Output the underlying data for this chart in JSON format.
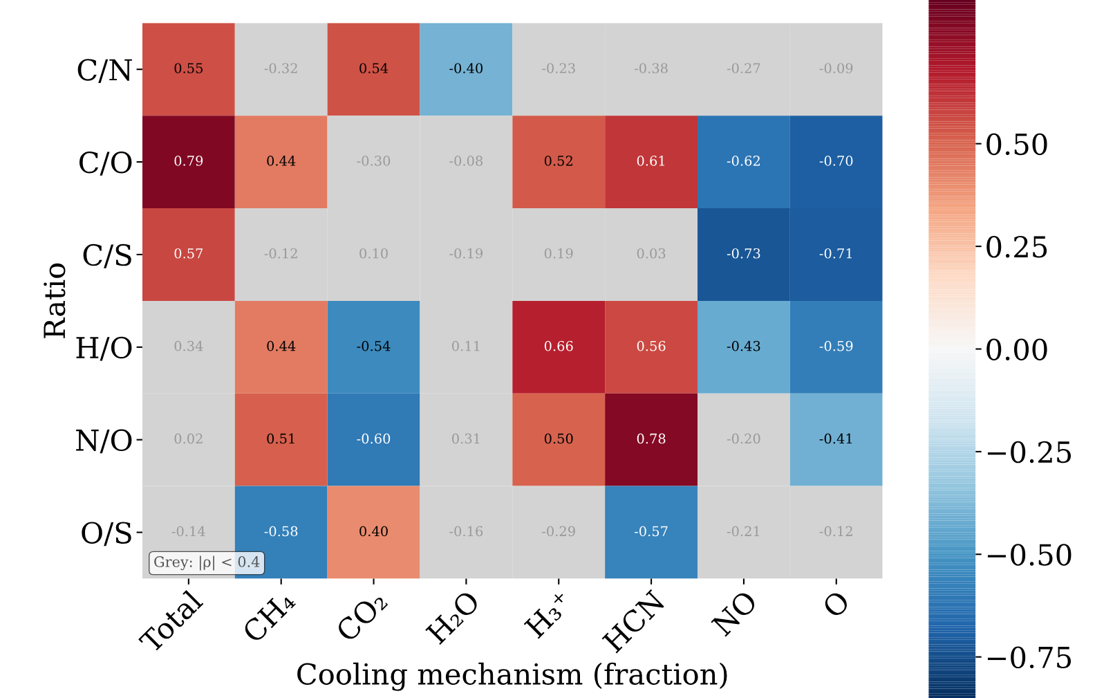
{
  "chart_data": {
    "type": "heatmap",
    "xlabel": "Cooling mechanism (fraction)",
    "ylabel": "Ratio",
    "categories": [
      "Total",
      "CH₄",
      "CO₂",
      "H₂O",
      "H₃⁺",
      "HCN",
      "NO",
      "O"
    ],
    "y_categories": [
      "C/N",
      "C/O",
      "C/S",
      "H/O",
      "N/O",
      "O/S"
    ],
    "cells": [
      [
        0.55,
        null,
        0.54,
        -0.4,
        null,
        null,
        null,
        null
      ],
      [
        0.79,
        0.44,
        null,
        null,
        0.52,
        0.61,
        -0.62,
        -0.7
      ],
      [
        0.57,
        null,
        null,
        null,
        null,
        null,
        -0.73,
        -0.71
      ],
      [
        null,
        0.44,
        -0.54,
        null,
        0.66,
        0.56,
        -0.43,
        -0.59
      ],
      [
        null,
        0.51,
        -0.6,
        null,
        0.5,
        0.78,
        null,
        -0.41
      ],
      [
        null,
        -0.58,
        0.4,
        null,
        null,
        -0.57,
        null,
        null
      ]
    ],
    "cell_labels": [
      [
        "0.55",
        "-0.32",
        "0.54",
        "-0.40",
        "-0.23",
        "-0.38",
        "-0.27",
        "-0.09"
      ],
      [
        "0.79",
        "0.44",
        "-0.30",
        "-0.08",
        "0.52",
        "0.61",
        "-0.62",
        "-0.70"
      ],
      [
        "0.57",
        "-0.12",
        "0.10",
        "-0.19",
        "0.19",
        "0.03",
        "-0.73",
        "-0.71"
      ],
      [
        "0.34",
        "0.44",
        "-0.54",
        "0.11",
        "0.66",
        "0.56",
        "-0.43",
        "-0.59"
      ],
      [
        "0.02",
        "0.51",
        "-0.60",
        "0.31",
        "0.50",
        "0.78",
        "-0.20",
        "-0.41"
      ],
      [
        "-0.14",
        "-0.58",
        "0.40",
        "-0.16",
        "-0.29",
        "-0.57",
        "-0.21",
        "-0.12"
      ]
    ],
    "clim": [
      -0.85,
      0.85
    ],
    "cticks": [
      {
        "value": 0.5,
        "label": "0.50"
      },
      {
        "value": 0.25,
        "label": "0.25"
      },
      {
        "value": 0.0,
        "label": "0.00"
      },
      {
        "value": -0.25,
        "label": "−0.25"
      },
      {
        "value": -0.5,
        "label": "−0.50"
      },
      {
        "value": -0.75,
        "label": "−0.75"
      }
    ],
    "annotations": [
      "Grey: |ρ| < 0.4"
    ]
  }
}
